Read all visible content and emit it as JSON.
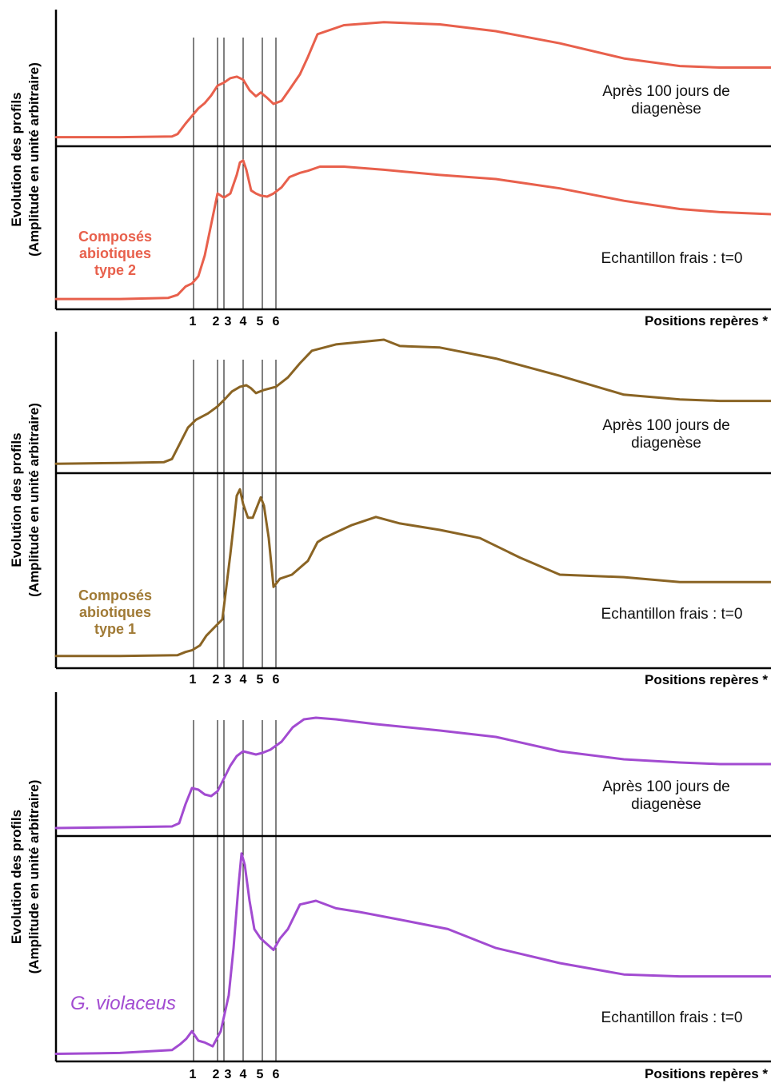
{
  "axis_label": {
    "line1": "Evolution des profils",
    "line2": "(Amplitude en unité arbitraire)"
  },
  "xlabel": "Positions repères *",
  "marker_labels": [
    "1",
    "2",
    "3",
    "4",
    "5",
    "6"
  ],
  "panels": [
    {
      "sample": "Composés abiotiques type 2",
      "sample_lines": [
        "Composés",
        "abiotiques",
        "type 2"
      ],
      "italic": false,
      "color": "#e8604c",
      "label_color": "#e8604c"
    },
    {
      "sample": "Composés abiotiques type 1",
      "sample_lines": [
        "Composés",
        "abiotiques",
        "type 1"
      ],
      "italic": false,
      "color": "#8a6424",
      "label_color": "#a07a35"
    },
    {
      "sample": "G. violaceus",
      "sample_lines": [
        "G. violaceus"
      ],
      "italic": true,
      "color": "#a24bd1",
      "label_color": "#a24bd1"
    }
  ],
  "chart_data": [
    {
      "type": "line",
      "xlabel": "Positions repères *",
      "ylabel": "Evolution des profils (Amplitude en unité arbitraire)",
      "x_markers": [
        {
          "label": "1",
          "x": 242
        },
        {
          "label": "2",
          "x": 272
        },
        {
          "label": "3",
          "x": 280
        },
        {
          "label": "4",
          "x": 304
        },
        {
          "label": "5",
          "x": 328
        },
        {
          "label": "6",
          "x": 345
        }
      ],
      "x_range": [
        70,
        964
      ],
      "series": [
        {
          "name": "Après 100 jours de diagenèse",
          "x": [
            70,
            150,
            215,
            222,
            232,
            240,
            248,
            256,
            264,
            272,
            280,
            288,
            296,
            304,
            312,
            320,
            326,
            334,
            342,
            352,
            362,
            375,
            385,
            397,
            430,
            480,
            550,
            620,
            700,
            780,
            850,
            900,
            964
          ],
          "y": [
            12,
            12,
            13,
            16,
            30,
            40,
            50,
            57,
            67,
            80,
            84,
            90,
            92,
            88,
            74,
            66,
            71,
            64,
            56,
            60,
            75,
            95,
            118,
            148,
            160,
            164,
            161,
            152,
            136,
            116,
            106,
            104,
            104
          ]
        },
        {
          "name": "Echantillon frais : t=0",
          "x": [
            70,
            150,
            210,
            222,
            232,
            240,
            248,
            256,
            264,
            272,
            280,
            288,
            296,
            300,
            304,
            308,
            314,
            320,
            326,
            334,
            342,
            352,
            362,
            375,
            385,
            400,
            430,
            480,
            550,
            620,
            700,
            780,
            850,
            900,
            964
          ],
          "y": [
            10,
            10,
            11,
            14,
            22,
            25,
            32,
            52,
            82,
            112,
            108,
            112,
            130,
            142,
            144,
            135,
            115,
            112,
            110,
            109,
            112,
            118,
            128,
            132,
            134,
            138,
            138,
            135,
            130,
            126,
            117,
            105,
            97,
            94,
            92
          ]
        }
      ]
    },
    {
      "type": "line",
      "xlabel": "Positions repères *",
      "ylabel": "Evolution des profils (Amplitude en unité arbitraire)",
      "x_markers": [
        {
          "label": "1",
          "x": 242
        },
        {
          "label": "2",
          "x": 272
        },
        {
          "label": "3",
          "x": 280
        },
        {
          "label": "4",
          "x": 304
        },
        {
          "label": "5",
          "x": 328
        },
        {
          "label": "6",
          "x": 345
        }
      ],
      "x_range": [
        70,
        964
      ],
      "series": [
        {
          "name": "Après 100 jours de diagenèse",
          "x": [
            70,
            150,
            205,
            215,
            225,
            235,
            245,
            260,
            272,
            280,
            290,
            300,
            308,
            314,
            320,
            330,
            345,
            360,
            375,
            390,
            420,
            460,
            480,
            500,
            550,
            620,
            700,
            780,
            850,
            900,
            964
          ],
          "y": [
            12,
            13,
            14,
            18,
            38,
            58,
            68,
            76,
            85,
            93,
            104,
            110,
            112,
            108,
            102,
            106,
            110,
            122,
            140,
            156,
            164,
            168,
            170,
            162,
            160,
            146,
            124,
            100,
            94,
            92,
            92
          ]
        },
        {
          "name": "Echantillon frais : t=0",
          "x": [
            70,
            150,
            222,
            232,
            240,
            250,
            258,
            268,
            278,
            288,
            292,
            296,
            300,
            304,
            310,
            316,
            322,
            326,
            330,
            336,
            342,
            350,
            365,
            385,
            397,
            405,
            420,
            440,
            470,
            500,
            550,
            600,
            650,
            700,
            780,
            850,
            900,
            964
          ],
          "y": [
            15,
            15,
            16,
            20,
            22,
            28,
            40,
            50,
            60,
            140,
            175,
            212,
            220,
            202,
            185,
            185,
            200,
            210,
            200,
            160,
            100,
            110,
            115,
            132,
            155,
            160,
            167,
            176,
            186,
            178,
            170,
            160,
            136,
            115,
            112,
            106,
            106,
            106
          ]
        }
      ]
    },
    {
      "type": "line",
      "xlabel": "Positions repères *",
      "ylabel": "Evolution des profils (Amplitude en unité arbitraire)",
      "x_markers": [
        {
          "label": "1",
          "x": 242
        },
        {
          "label": "2",
          "x": 272
        },
        {
          "label": "3",
          "x": 280
        },
        {
          "label": "4",
          "x": 304
        },
        {
          "label": "5",
          "x": 328
        },
        {
          "label": "6",
          "x": 345
        }
      ],
      "x_range": [
        70,
        964
      ],
      "series": [
        {
          "name": "Après 100 jours de diagenèse",
          "x": [
            70,
            150,
            215,
            224,
            232,
            240,
            248,
            256,
            264,
            272,
            280,
            288,
            296,
            304,
            312,
            320,
            328,
            338,
            352,
            366,
            380,
            395,
            420,
            470,
            550,
            620,
            700,
            780,
            850,
            900,
            964
          ],
          "y": [
            10,
            11,
            12,
            16,
            40,
            60,
            58,
            52,
            50,
            56,
            72,
            88,
            100,
            106,
            104,
            102,
            104,
            108,
            118,
            136,
            146,
            148,
            146,
            140,
            132,
            124,
            106,
            96,
            92,
            90,
            90
          ]
        },
        {
          "name": "Echantillon frais : t=0",
          "x": [
            70,
            150,
            215,
            225,
            233,
            240,
            248,
            256,
            266,
            276,
            286,
            292,
            298,
            302,
            306,
            312,
            318,
            326,
            334,
            342,
            350,
            360,
            375,
            395,
            420,
            450,
            500,
            560,
            620,
            700,
            780,
            850,
            900,
            964
          ],
          "y": [
            8,
            9,
            12,
            18,
            24,
            32,
            22,
            20,
            16,
            32,
            70,
            120,
            184,
            220,
            208,
            170,
            140,
            130,
            124,
            118,
            130,
            140,
            166,
            170,
            162,
            158,
            150,
            140,
            120,
            104,
            92,
            90,
            90,
            90
          ]
        }
      ]
    }
  ]
}
